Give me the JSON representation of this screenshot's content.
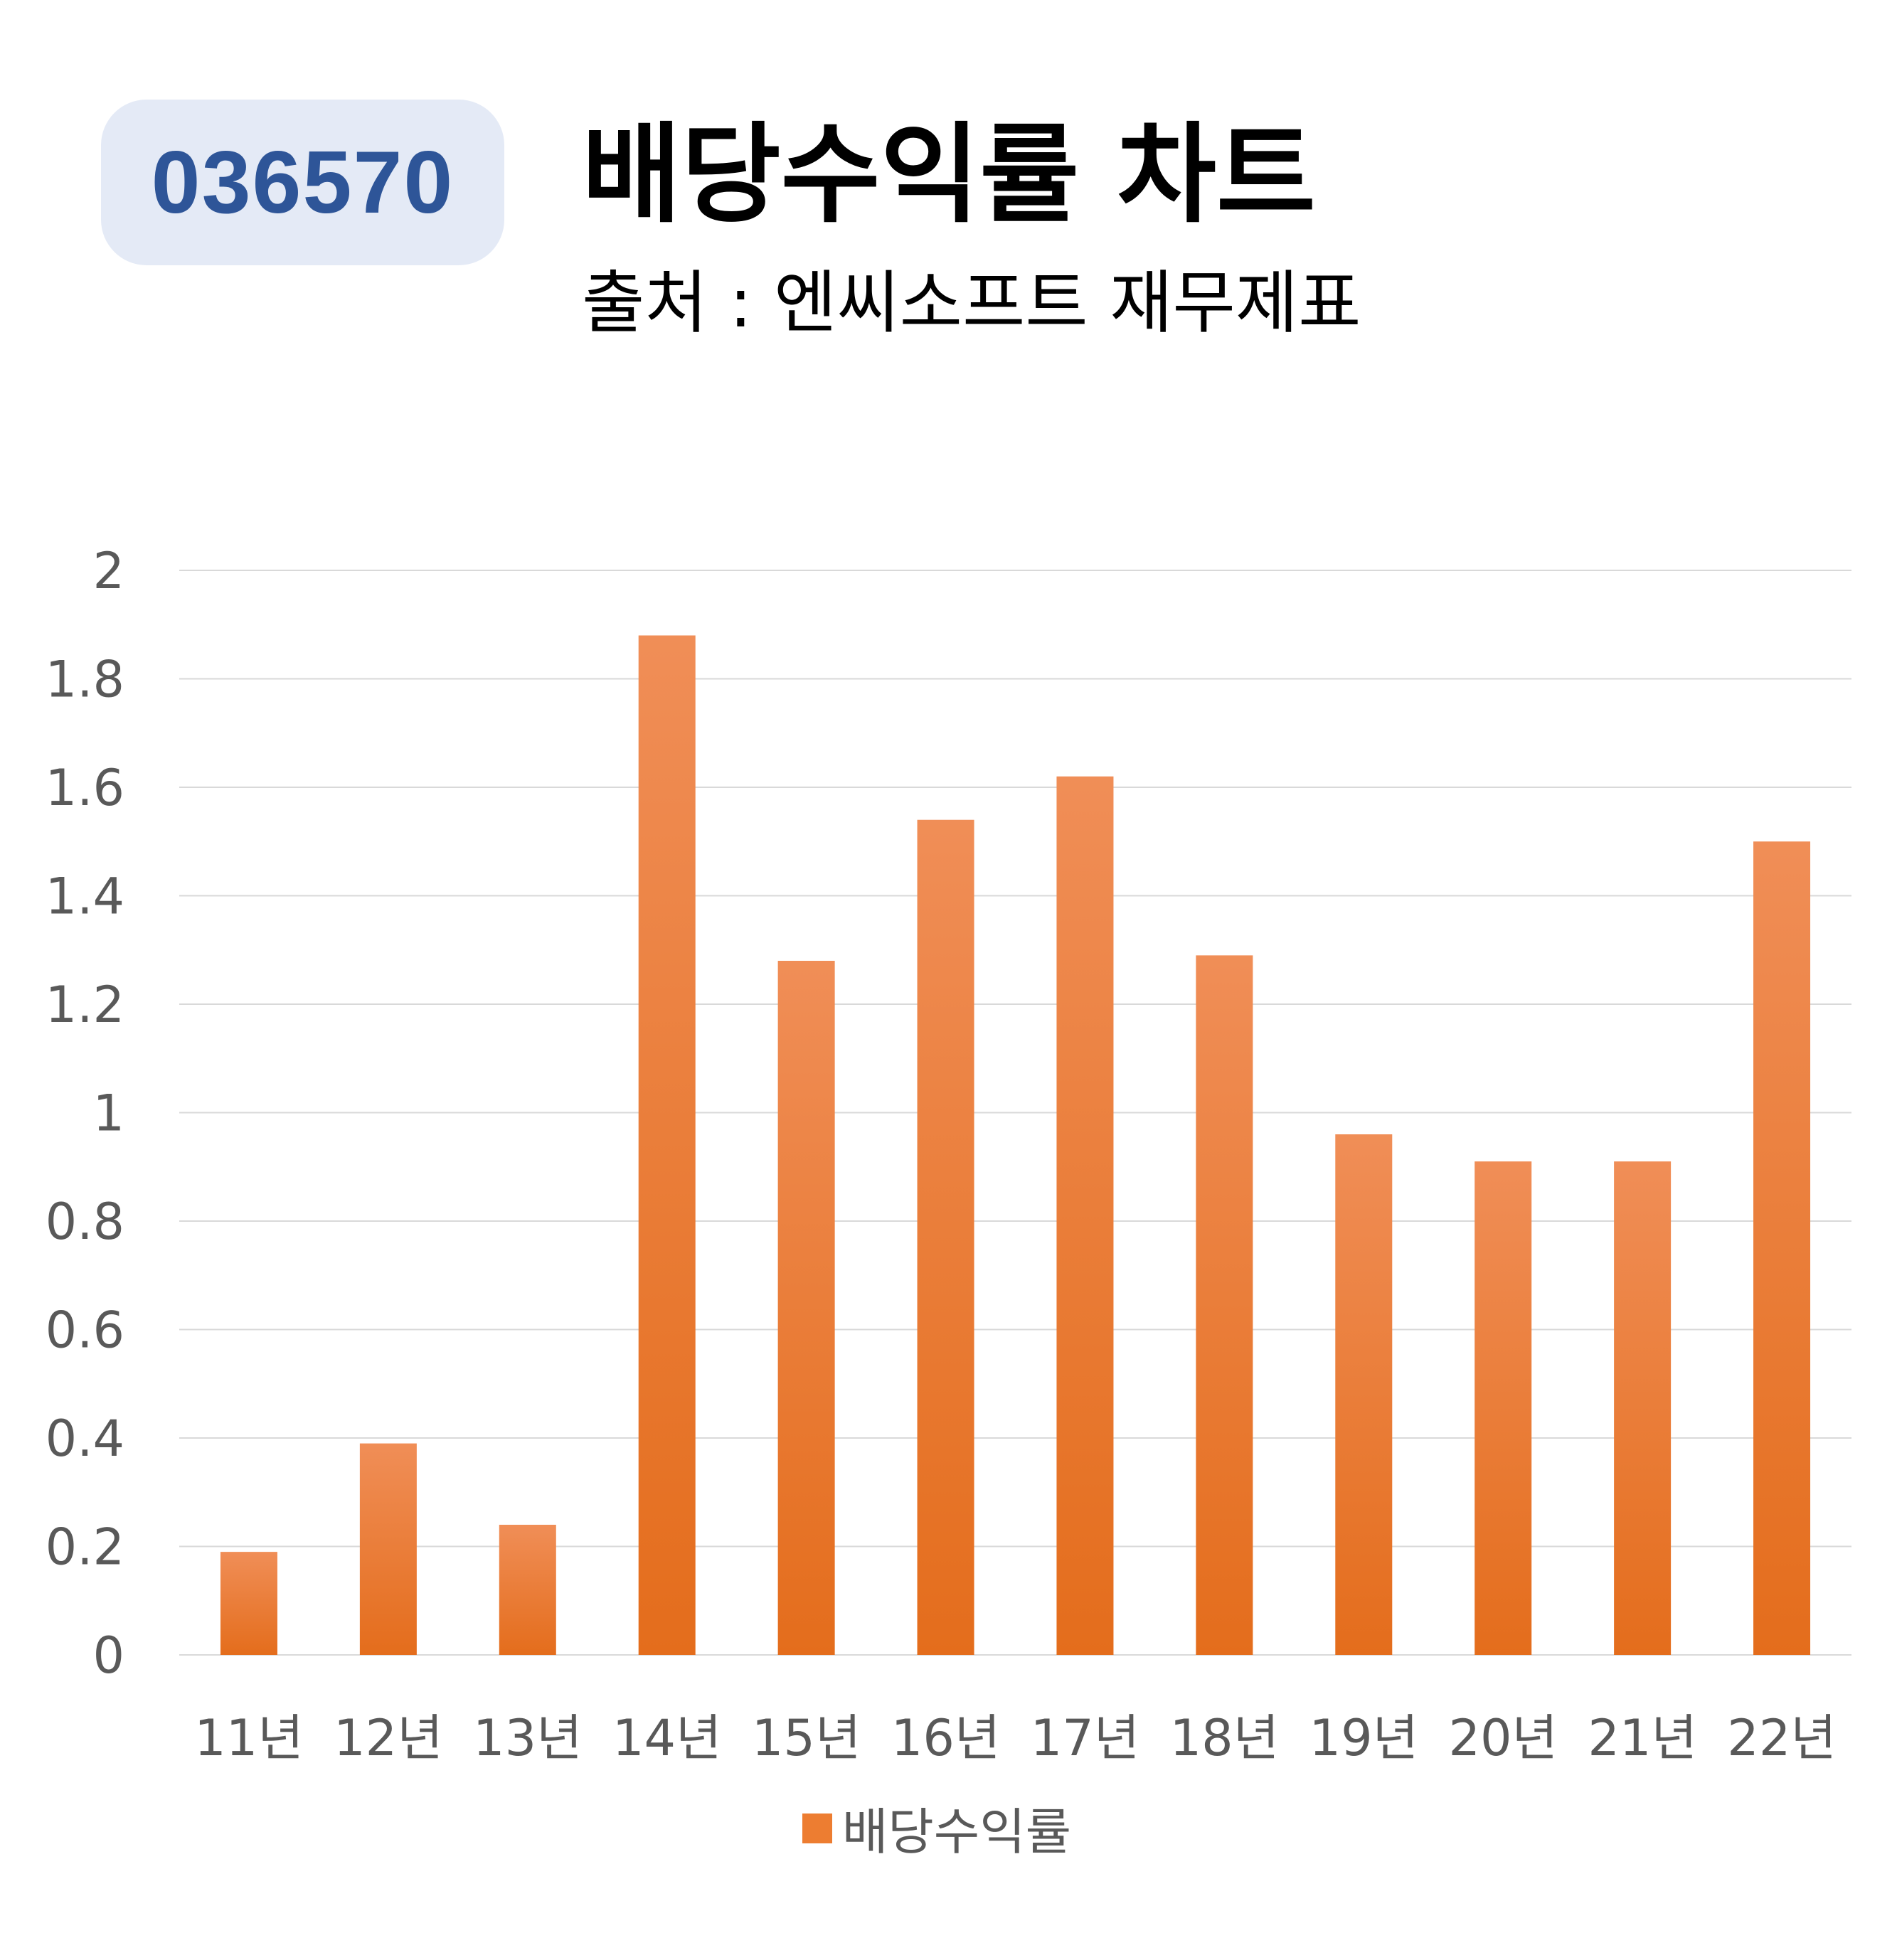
{
  "header": {
    "ticker": "036570",
    "title": "배당수익률 차트",
    "subtitle": "출처 : 엔씨소프트 재무제표"
  },
  "colors": {
    "bar_top": "#f08e57",
    "bar_bottom": "#e46d1c",
    "badge_bg": "#e4eaf6",
    "badge_text": "#2e5598",
    "gridline": "#d9d9d9",
    "tick_text": "#595959"
  },
  "chart_data": {
    "type": "bar",
    "title": "배당수익률 차트",
    "subtitle": "출처 : 엔씨소프트 재무제표",
    "categories": [
      "11년",
      "12년",
      "13년",
      "14년",
      "15년",
      "16년",
      "17년",
      "18년",
      "19년",
      "20년",
      "21년",
      "22년"
    ],
    "series": [
      {
        "name": "배당수익률",
        "values": [
          0.19,
          0.39,
          0.24,
          1.88,
          1.28,
          1.54,
          1.62,
          1.29,
          0.96,
          0.91,
          0.91,
          1.5
        ]
      }
    ],
    "ylim": [
      0,
      2
    ],
    "yticks": [
      "0",
      "0.2",
      "0.4",
      "0.6",
      "0.8",
      "1",
      "1.2",
      "1.4",
      "1.6",
      "1.8",
      "2"
    ],
    "grid": true,
    "legend": "bottom",
    "xlabel": "",
    "ylabel": ""
  }
}
